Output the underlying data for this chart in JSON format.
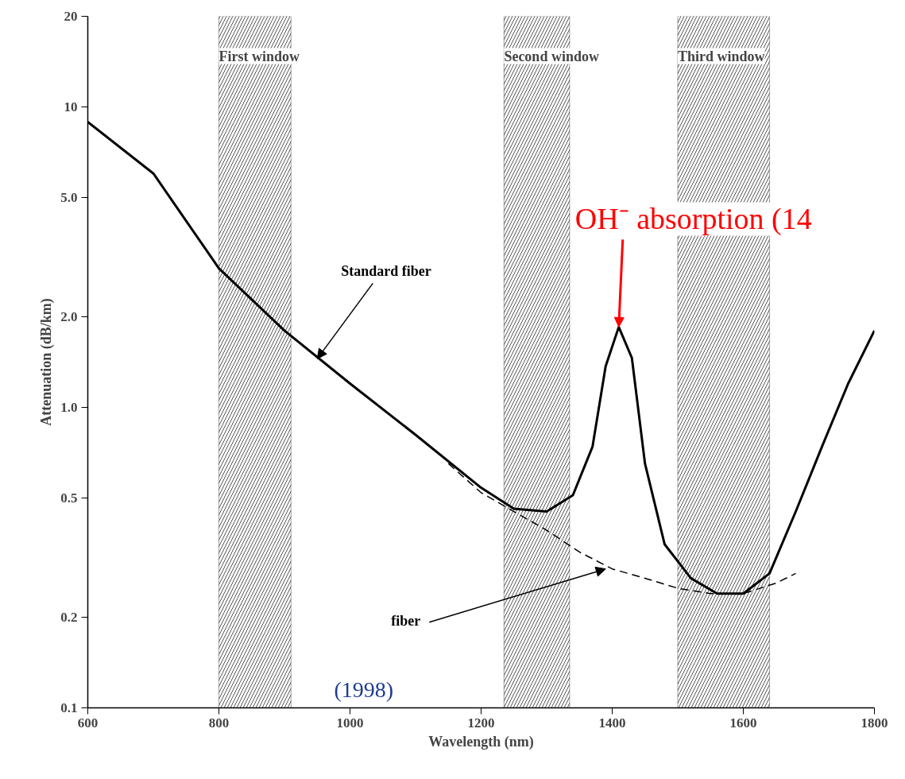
{
  "chart_data": {
    "type": "line",
    "xlabel": "Wavelength (nm)",
    "ylabel": "Attenuation (dB/km)",
    "log": "y",
    "xlim": [
      600,
      1800
    ],
    "xticks": [
      600,
      800,
      1000,
      1200,
      1400,
      1600,
      1800
    ],
    "ylim": [
      0.1,
      20
    ],
    "yticks": [
      0.1,
      0.2,
      0.5,
      {
        "value": 1,
        "label": "1.0"
      },
      {
        "value": 2,
        "label": "2.0"
      },
      {
        "value": 5,
        "label": "5.0"
      },
      10,
      20
    ],
    "grid": false,
    "series": [
      {
        "color": "#000000",
        "line_style": "solid",
        "x": [
          600,
          700,
          800,
          900,
          1000,
          1100,
          1200,
          1250,
          1300,
          1340,
          1370,
          1390,
          1410,
          1430,
          1450,
          1480,
          1520,
          1560,
          1600,
          1640,
          1680,
          1720,
          1760,
          1800
        ],
        "values": [
          8.9,
          6.0,
          2.9,
          1.8,
          1.2,
          0.81,
          0.54,
          0.46,
          0.45,
          0.51,
          0.74,
          1.37,
          1.85,
          1.46,
          0.65,
          0.35,
          0.27,
          0.24,
          0.24,
          0.28,
          0.45,
          0.74,
          1.2,
          1.8
        ]
      },
      {
        "color": "#000000",
        "line_style": "dashed",
        "x": [
          1150,
          1200,
          1250,
          1300,
          1350,
          1400,
          1450,
          1500,
          1550,
          1600,
          1650,
          1680
        ],
        "values": [
          0.65,
          0.52,
          0.45,
          0.39,
          0.33,
          0.29,
          0.27,
          0.25,
          0.24,
          0.24,
          0.26,
          0.28
        ]
      }
    ],
    "bands": [
      {
        "axis": "x",
        "from": 800,
        "to": 910,
        "label": "First window"
      },
      {
        "axis": "x",
        "from": 1235,
        "to": 1335,
        "label": "Second window"
      },
      {
        "axis": "x",
        "from": 1500,
        "to": 1640,
        "label": "Third window"
      }
    ],
    "annotations": [
      {
        "text": "Standard fiber",
        "x": 950,
        "y": 1.45
      },
      {
        "text": "OH⁻ absorption (14",
        "x": 1410,
        "y": 1.85
      },
      {
        "text": "fiber",
        "x": 1390,
        "y": 0.29
      },
      "(1998)"
    ]
  }
}
